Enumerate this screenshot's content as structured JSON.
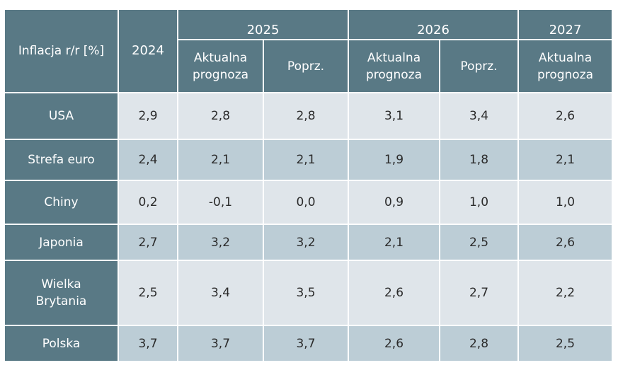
{
  "header": {
    "row_label": "Inflacja r/r [%]",
    "year_2024": "2024",
    "year_2025": "2025",
    "year_2026": "2026",
    "year_2027": "2027",
    "sub_2025_current": "Aktualna prognoza",
    "sub_2025_prev": "Poprz.",
    "sub_2026_current": "Aktualna prognoza",
    "sub_2026_prev": "Poprz.",
    "sub_2027_current": "Aktualna prognoza"
  },
  "rows": [
    {
      "country": "USA",
      "values": [
        "2,9",
        "2,8",
        "2,8",
        "3,1",
        "3,4",
        "2,6"
      ]
    },
    {
      "country": "Strefa euro",
      "values": [
        "2,4",
        "2,1",
        "2,1",
        "1,9",
        "1,8",
        "2,1"
      ]
    },
    {
      "country": "Chiny",
      "values": [
        "0,2",
        "-0,1",
        "0,0",
        "0,9",
        "1,0",
        "1,0"
      ]
    },
    {
      "country": "Japonia",
      "values": [
        "2,7",
        "3,2",
        "3,2",
        "2,1",
        "2,5",
        "2,6"
      ]
    },
    {
      "country": "Wielka Brytania",
      "values": [
        "2,5",
        "3,4",
        "3,5",
        "2,6",
        "2,7",
        "2,2"
      ]
    },
    {
      "country": "Polska",
      "values": [
        "3,7",
        "3,7",
        "3,7",
        "2,6",
        "2,8",
        "2,5"
      ]
    }
  ],
  "colors": {
    "header": "#597985",
    "row_light": "#dfe5ea",
    "row_dark": "#bccdd6"
  }
}
